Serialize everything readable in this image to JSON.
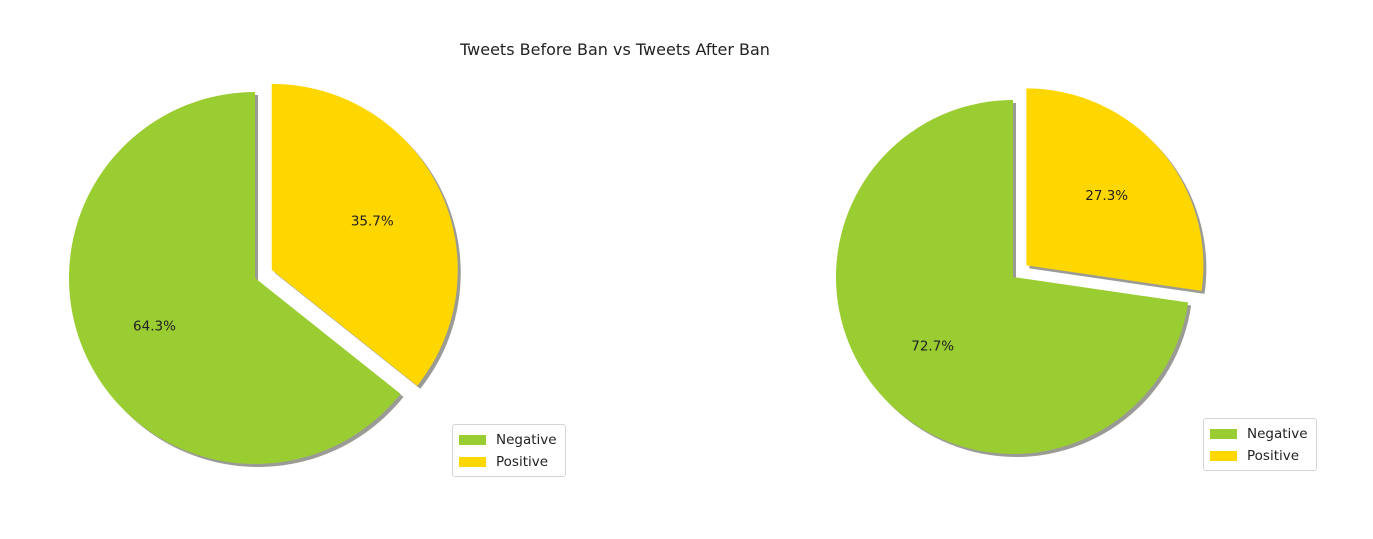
{
  "title": "Tweets Before Ban vs Tweets After Ban",
  "chart_data": [
    {
      "type": "pie",
      "categories": [
        "Negative",
        "Positive"
      ],
      "values": [
        64.3,
        35.7
      ],
      "labels": [
        "64.3%",
        "35.7%"
      ],
      "colors": [
        "#9ACD32",
        "#FFD700"
      ],
      "explode": [
        0,
        0.1
      ],
      "shadow": true,
      "legend": "lower-right"
    },
    {
      "type": "pie",
      "categories": [
        "Negative",
        "Positive"
      ],
      "values": [
        72.7,
        27.3
      ],
      "labels": [
        "72.7%",
        "27.3%"
      ],
      "colors": [
        "#9ACD32",
        "#FFD700"
      ],
      "explode": [
        0,
        0.1
      ],
      "shadow": true,
      "legend": "lower-right"
    }
  ]
}
